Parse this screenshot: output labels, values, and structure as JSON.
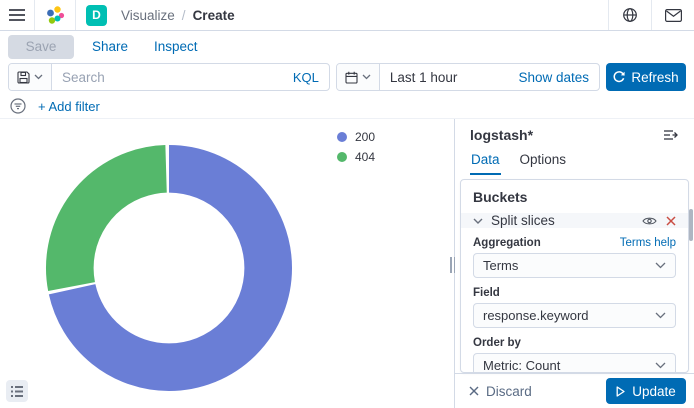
{
  "topnav": {
    "breadcrumb": {
      "parent": "Visualize",
      "separator": "/",
      "current": "Create"
    },
    "space_badge": "D"
  },
  "toolbar": {
    "save_label": "Save",
    "share_label": "Share",
    "inspect_label": "Inspect"
  },
  "querybar": {
    "search_placeholder": "Search",
    "language_label": "KQL",
    "time_range": "Last 1 hour",
    "show_dates_label": "Show dates",
    "refresh_label": "Refresh"
  },
  "filterbar": {
    "add_filter_label": "+ Add filter"
  },
  "chart_data": {
    "type": "pie",
    "subtype": "donut",
    "categories": [
      "200",
      "404"
    ],
    "values": [
      72,
      28
    ],
    "value_unit": "percent, estimated from arc angles (blue 0°–260°, green 260°–360° clockwise from top)",
    "colors": [
      "#6A7ED6",
      "#54B86B"
    ],
    "legend_position": "top-right",
    "inner_radius_ratio": 0.61,
    "title": ""
  },
  "panel": {
    "title": "logstash*",
    "tabs": [
      {
        "label": "Data",
        "active": true
      },
      {
        "label": "Options",
        "active": false
      }
    ],
    "buckets": {
      "heading": "Buckets",
      "accordion_label": "Split slices",
      "aggregation_label": "Aggregation",
      "aggregation_help": "Terms help",
      "aggregation_value": "Terms",
      "field_label": "Field",
      "field_value": "response.keyword",
      "order_by_label": "Order by",
      "order_by_value": "Metric: Count"
    },
    "footer": {
      "discard_label": "Discard",
      "update_label": "Update"
    }
  },
  "colors": {
    "primary": "#006BB4",
    "text": "#343741",
    "subdued": "#69707D",
    "border": "#D3DAE6",
    "danger": "#C94D43",
    "badge_teal": "#00BFB3",
    "slice_200": "#6A7ED6",
    "slice_404": "#54B86B"
  }
}
